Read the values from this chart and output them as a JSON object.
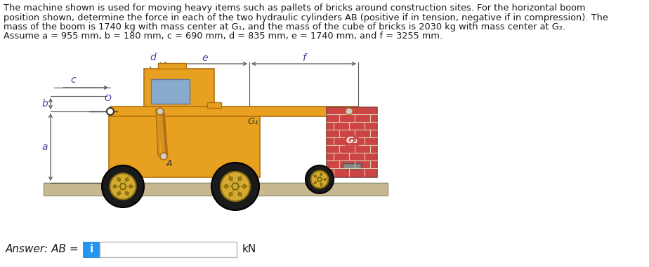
{
  "title_lines": [
    "The machine shown is used for moving heavy items such as pallets of bricks around construction sites. For the horizontal boom",
    "position shown, determine the force in each of the two hydraulic cylinders AB (positive if in tension, negative if in compression). The",
    "mass of the boom is 1740 kg with mass center at G₁, and the mass of the cube of bricks is 2030 kg with mass center at G₂.",
    "Assume a = 955 mm, b = 180 mm, c = 690 mm, d = 835 mm, e = 1740 mm, and f = 3255 mm."
  ],
  "bg_color": "#ffffff",
  "text_color": "#1a1a1a",
  "title_fontsize": 9.3,
  "answer_label": "Answer: AB =",
  "answer_unit": "kN",
  "info_btn_color": "#2196F3",
  "info_btn_text": "i",
  "machine_body_color": "#E8A020",
  "machine_dark_color": "#B07010",
  "machine_medium": "#D49020",
  "window_color": "#88AACC",
  "tire_color": "#1a1a1a",
  "rim_color": "#D4AA30",
  "rim_light": "#E8C840",
  "spoke_color": "#B09020",
  "brick_red": "#CC4444",
  "brick_dark": "#AA3333",
  "brick_mortar": "#DDCCAA",
  "ground_color": "#C8B890",
  "ground_border": "#999977",
  "dim_color": "#555555",
  "dim_label_color": "#444499",
  "label_O_color": "#4444AA",
  "label_B_color": "#333333",
  "label_A_color": "#333333",
  "label_G_color": "#333333"
}
